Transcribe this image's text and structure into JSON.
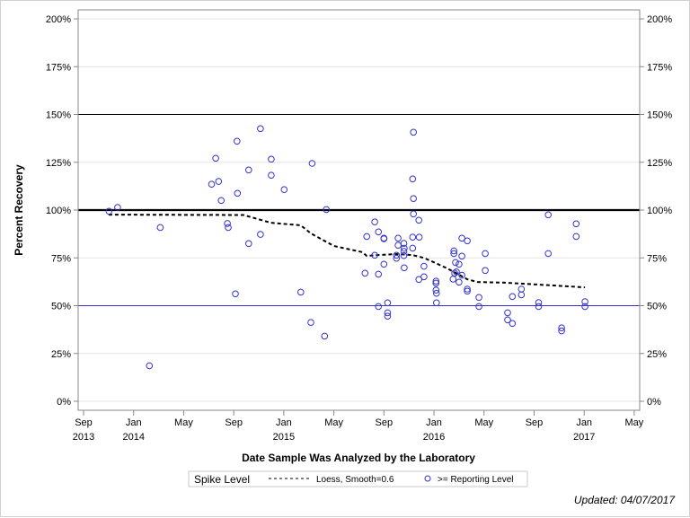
{
  "chart_data": {
    "type": "scatter",
    "title": "",
    "xlabel": "Date Sample Was Analyzed by the Laboratory",
    "ylabel": "Percent Recovery",
    "xlim": [
      "2013-09-01",
      "2017-05-01"
    ],
    "ylim": [
      0,
      200
    ],
    "y_unit": "%",
    "grid": true,
    "x_ticks": [
      {
        "date": "2013-09-01",
        "label": "Sep",
        "year": "2013"
      },
      {
        "date": "2014-01-01",
        "label": "Jan",
        "year": "2014"
      },
      {
        "date": "2014-05-01",
        "label": "May",
        "year": ""
      },
      {
        "date": "2014-09-01",
        "label": "Sep",
        "year": ""
      },
      {
        "date": "2015-01-01",
        "label": "Jan",
        "year": "2015"
      },
      {
        "date": "2015-05-01",
        "label": "May",
        "year": ""
      },
      {
        "date": "2015-09-01",
        "label": "Sep",
        "year": ""
      },
      {
        "date": "2016-01-01",
        "label": "Jan",
        "year": "2016"
      },
      {
        "date": "2016-05-01",
        "label": "May",
        "year": ""
      },
      {
        "date": "2016-09-01",
        "label": "Sep",
        "year": ""
      },
      {
        "date": "2017-01-01",
        "label": "Jan",
        "year": "2017"
      },
      {
        "date": "2017-05-01",
        "label": "May",
        "year": ""
      }
    ],
    "y_ticks": [
      0,
      25,
      50,
      75,
      100,
      125,
      150,
      175,
      200
    ],
    "y_tick_labels": [
      "0%",
      "25%",
      "50%",
      "75%",
      "100%",
      "125%",
      "150%",
      "175%",
      "200%"
    ],
    "reference_lines": [
      {
        "y": 150,
        "color": "#000000",
        "style": "thin"
      },
      {
        "y": 100,
        "color": "#000000",
        "style": "thick"
      },
      {
        "y": 50,
        "color": "#3333cc",
        "style": "thin"
      }
    ],
    "legend": {
      "title": "Spike Level",
      "placement": "bottom",
      "entries": [
        "Loess, Smooth=0.6",
        ">= Reporting Level"
      ]
    },
    "series": [
      {
        "name": ">= Reporting Level",
        "type": "scatter",
        "color": "#3333cc",
        "marker": "open-circle",
        "points": [
          [
            "2013-11-02",
            99.4
          ],
          [
            "2013-11-23",
            101.4
          ],
          [
            "2014-02-09",
            18.6
          ],
          [
            "2014-03-05",
            90.9
          ],
          [
            "2014-07-08",
            113.5
          ],
          [
            "2014-07-18",
            127.1
          ],
          [
            "2014-07-25",
            115.0
          ],
          [
            "2014-08-01",
            105.0
          ],
          [
            "2014-08-16",
            93.0
          ],
          [
            "2014-08-18",
            90.9
          ],
          [
            "2014-09-09",
            136.0
          ],
          [
            "2014-09-10",
            108.8
          ],
          [
            "2014-09-05",
            56.2
          ],
          [
            "2014-10-07",
            121.0
          ],
          [
            "2014-10-07",
            82.5
          ],
          [
            "2014-11-05",
            142.6
          ],
          [
            "2014-11-05",
            87.3
          ],
          [
            "2014-12-01",
            126.6
          ],
          [
            "2014-12-01",
            118.2
          ],
          [
            "2015-01-02",
            110.7
          ],
          [
            "2015-02-12",
            57.1
          ],
          [
            "2015-03-09",
            124.4
          ],
          [
            "2015-03-06",
            41.2
          ],
          [
            "2015-04-09",
            34.1
          ],
          [
            "2015-04-13",
            100.3
          ],
          [
            "2015-11-12",
            140.7
          ],
          [
            "2015-11-10",
            116.3
          ],
          [
            "2015-11-12",
            106.0
          ],
          [
            "2015-11-12",
            98.0
          ],
          [
            "2015-11-25",
            94.7
          ],
          [
            "2015-08-09",
            93.8
          ],
          [
            "2015-08-18",
            88.6
          ],
          [
            "2015-07-20",
            86.2
          ],
          [
            "2015-09-01",
            85.3
          ],
          [
            "2015-09-01",
            85.0
          ],
          [
            "2015-10-05",
            85.3
          ],
          [
            "2015-11-10",
            85.8
          ],
          [
            "2015-11-26",
            85.8
          ],
          [
            "2015-10-19",
            82.6
          ],
          [
            "2015-10-05",
            81.6
          ],
          [
            "2015-10-20",
            80.0
          ],
          [
            "2015-11-10",
            80.1
          ],
          [
            "2015-10-19",
            78.4
          ],
          [
            "2015-08-09",
            76.4
          ],
          [
            "2015-10-01",
            76.4
          ],
          [
            "2015-10-01",
            74.8
          ],
          [
            "2015-10-19",
            76.2
          ],
          [
            "2015-09-01",
            71.7
          ],
          [
            "2015-10-20",
            69.8
          ],
          [
            "2015-12-07",
            70.6
          ],
          [
            "2015-12-07",
            65.1
          ],
          [
            "2015-11-25",
            63.7
          ],
          [
            "2015-07-16",
            67.0
          ],
          [
            "2015-08-18",
            66.5
          ],
          [
            "2015-08-18",
            49.6
          ],
          [
            "2015-09-10",
            51.5
          ],
          [
            "2015-09-10",
            46.3
          ],
          [
            "2015-09-10",
            44.5
          ],
          [
            "2016-01-06",
            62.8
          ],
          [
            "2016-01-06",
            61.8
          ],
          [
            "2016-01-06",
            58.1
          ],
          [
            "2016-01-07",
            56.5
          ],
          [
            "2016-01-07",
            51.5
          ],
          [
            "2016-02-19",
            78.7
          ],
          [
            "2016-02-19",
            77.3
          ],
          [
            "2016-03-08",
            85.3
          ],
          [
            "2016-03-21",
            83.9
          ],
          [
            "2016-03-08",
            75.9
          ],
          [
            "2016-02-23",
            72.6
          ],
          [
            "2016-03-01",
            71.7
          ],
          [
            "2016-02-21",
            67.0
          ],
          [
            "2016-02-25",
            67.7
          ],
          [
            "2016-03-08",
            65.9
          ],
          [
            "2016-02-17",
            63.9
          ],
          [
            "2016-03-01",
            62.3
          ],
          [
            "2016-03-21",
            58.7
          ],
          [
            "2016-03-21",
            57.6
          ],
          [
            "2016-05-04",
            77.3
          ],
          [
            "2016-05-04",
            68.4
          ],
          [
            "2016-04-19",
            54.3
          ],
          [
            "2016-04-19",
            49.6
          ],
          [
            "2016-07-09",
            54.8
          ],
          [
            "2016-07-31",
            58.7
          ],
          [
            "2016-07-31",
            55.7
          ],
          [
            "2016-06-28",
            46.3
          ],
          [
            "2016-06-28",
            42.6
          ],
          [
            "2016-07-09",
            40.7
          ],
          [
            "2016-09-12",
            51.6
          ],
          [
            "2016-09-12",
            49.6
          ],
          [
            "2016-10-05",
            97.5
          ],
          [
            "2016-10-05",
            77.3
          ],
          [
            "2016-11-07",
            38.4
          ],
          [
            "2016-11-07",
            36.8
          ],
          [
            "2016-12-12",
            92.8
          ],
          [
            "2016-12-12",
            86.2
          ],
          [
            "2017-01-03",
            52.1
          ],
          [
            "2017-01-03",
            49.6
          ]
        ]
      },
      {
        "name": "Loess, Smooth=0.6",
        "type": "line",
        "color": "#000000",
        "style": "dashed",
        "points": [
          [
            "2013-11-01",
            97.6
          ],
          [
            "2014-09-25",
            97.4
          ],
          [
            "2014-11-30",
            93.4
          ],
          [
            "2015-02-12",
            92.0
          ],
          [
            "2015-03-06",
            87.8
          ],
          [
            "2015-05-01",
            81.2
          ],
          [
            "2015-07-10",
            78.0
          ],
          [
            "2015-07-20",
            76.0
          ],
          [
            "2015-08-09",
            76.4
          ],
          [
            "2015-10-01",
            77.0
          ],
          [
            "2015-11-10",
            76.5
          ],
          [
            "2015-12-07",
            75.0
          ],
          [
            "2015-12-30",
            72.8
          ],
          [
            "2016-02-03",
            69.5
          ],
          [
            "2016-03-01",
            66.2
          ],
          [
            "2016-03-21",
            63.8
          ],
          [
            "2016-04-15",
            62.4
          ],
          [
            "2016-06-23",
            62.0
          ],
          [
            "2016-09-15",
            61.0
          ],
          [
            "2017-01-03",
            59.6
          ]
        ]
      }
    ]
  },
  "footer": {
    "updated": "Updated: 04/07/2017"
  }
}
